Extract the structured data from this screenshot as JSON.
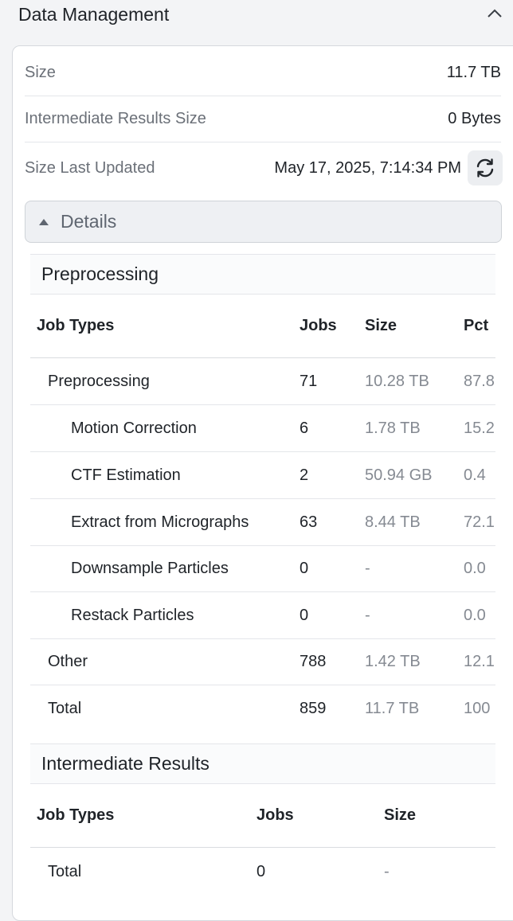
{
  "section": {
    "title": "Data Management"
  },
  "summary": {
    "size_label": "Size",
    "size_value": "11.7 TB",
    "intermediate_label": "Intermediate Results Size",
    "intermediate_value": "0 Bytes",
    "updated_label": "Size Last Updated",
    "updated_value": "May 17, 2025, 7:14:34 PM"
  },
  "details": {
    "label": "Details"
  },
  "preprocessing": {
    "title": "Preprocessing",
    "headers": {
      "job_types": "Job Types",
      "jobs": "Jobs",
      "size": "Size",
      "pct": "Pct"
    },
    "rows": [
      {
        "name": "Preprocessing",
        "jobs": "71",
        "size": "10.28 TB",
        "pct": "87.8",
        "indent": 1
      },
      {
        "name": "Motion Correction",
        "jobs": "6",
        "size": "1.78 TB",
        "pct": "15.2",
        "indent": 2
      },
      {
        "name": "CTF Estimation",
        "jobs": "2",
        "size": "50.94 GB",
        "pct": "0.4",
        "indent": 2
      },
      {
        "name": "Extract from Micrographs",
        "jobs": "63",
        "size": "8.44 TB",
        "pct": "72.1",
        "indent": 2
      },
      {
        "name": "Downsample Particles",
        "jobs": "0",
        "size": "-",
        "pct": "0.0",
        "indent": 2
      },
      {
        "name": "Restack Particles",
        "jobs": "0",
        "size": "-",
        "pct": "0.0",
        "indent": 2
      },
      {
        "name": "Other",
        "jobs": "788",
        "size": "1.42 TB",
        "pct": "12.1",
        "indent": 1
      },
      {
        "name": "Total",
        "jobs": "859",
        "size": "11.7 TB",
        "pct": "100",
        "indent": 1
      }
    ]
  },
  "intermediate": {
    "title": "Intermediate Results",
    "headers": {
      "job_types": "Job Types",
      "jobs": "Jobs",
      "size": "Size"
    },
    "rows": [
      {
        "name": "Total",
        "jobs": "0",
        "size": "-"
      }
    ]
  }
}
